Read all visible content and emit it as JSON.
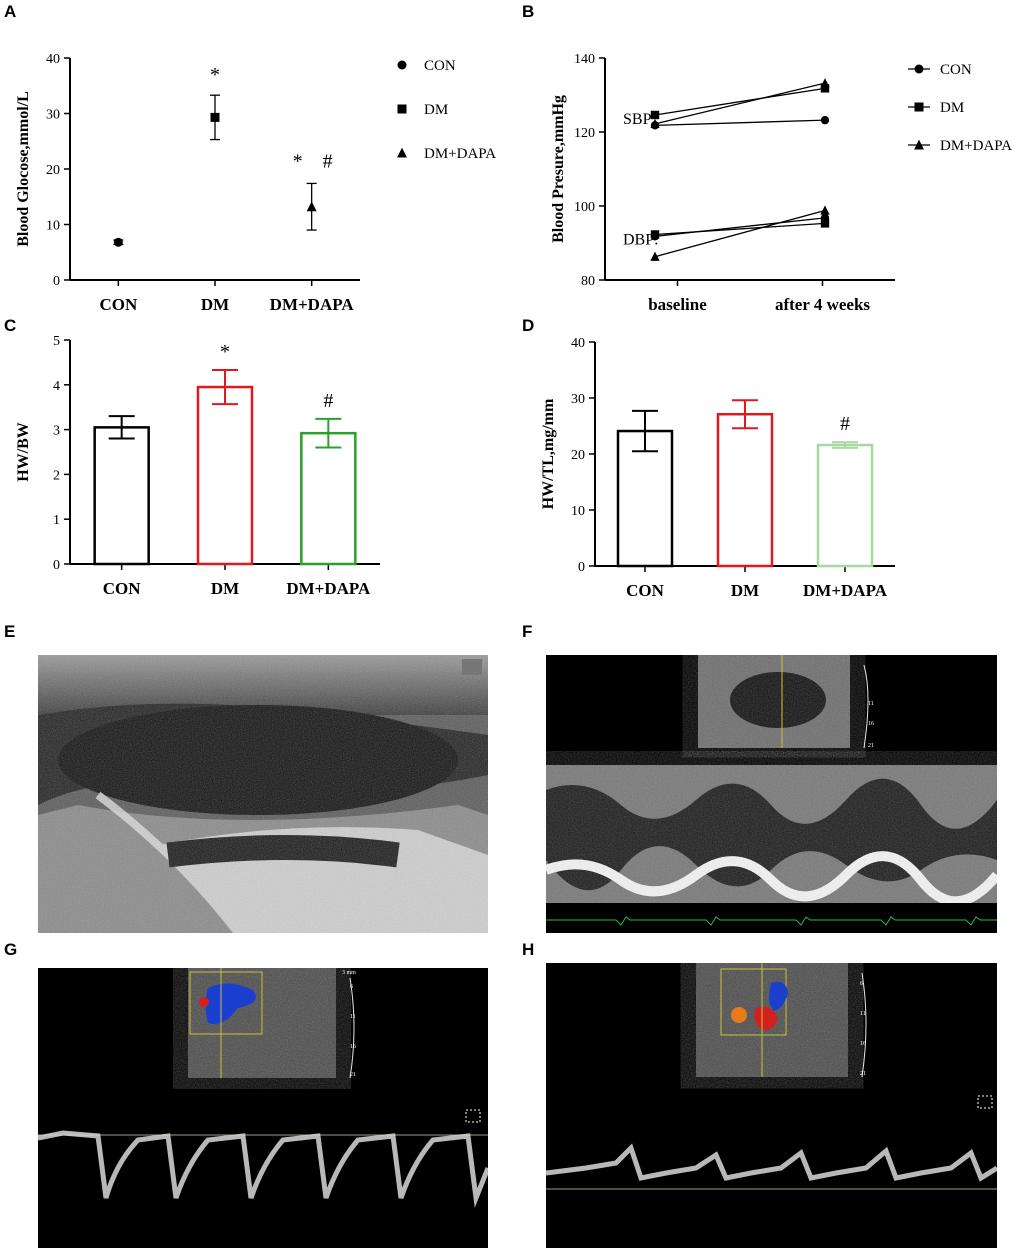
{
  "panel_letters": [
    "A",
    "B",
    "C",
    "D",
    "E",
    "F",
    "G",
    "H"
  ],
  "chart_data": [
    {
      "panel": "A",
      "type": "scatter",
      "ylabel": "Blood Glocose,mmol/L",
      "categories": [
        "CON",
        "DM",
        "DM+DAPA"
      ],
      "ylim": [
        0,
        40
      ],
      "yticks": [
        0,
        10,
        20,
        30,
        40
      ],
      "series": [
        {
          "name": "CON",
          "marker": "circle",
          "category": "CON",
          "value": 6.8,
          "err": 0.4
        },
        {
          "name": "DM",
          "marker": "square",
          "category": "DM",
          "value": 29.3,
          "err": 4.0
        },
        {
          "name": "DM+DAPA",
          "marker": "triangle",
          "category": "DM+DAPA",
          "value": 13.2,
          "err": 4.2
        }
      ],
      "annotations": [
        {
          "category": "DM",
          "text": "*"
        },
        {
          "category": "DM+DAPA",
          "text": "*"
        },
        {
          "category": "DM+DAPA",
          "text": "#"
        }
      ],
      "legend": "right"
    },
    {
      "panel": "B",
      "type": "line",
      "ylabel": "Blood Presure,mmHg",
      "categories": [
        "baseline",
        "after 4 weeks"
      ],
      "ylim": [
        80,
        140
      ],
      "yticks": [
        80,
        100,
        120,
        140
      ],
      "row_labels": [
        "SBP:",
        "DBP:"
      ],
      "series": [
        {
          "name": "CON",
          "marker": "circle",
          "sbp": [
            121.8,
            123.2
          ],
          "dbp": [
            91.8,
            96.8
          ]
        },
        {
          "name": "DM",
          "marker": "square",
          "sbp": [
            124.6,
            131.8
          ],
          "dbp": [
            92.3,
            95.3
          ]
        },
        {
          "name": "DM+DAPA",
          "marker": "triangle",
          "sbp": [
            122.2,
            133.2
          ],
          "dbp": [
            86.3,
            98.8
          ]
        }
      ],
      "legend": "right"
    },
    {
      "panel": "C",
      "type": "bar",
      "ylabel": "HW/BW",
      "categories": [
        "CON",
        "DM",
        "DM+DAPA"
      ],
      "ylim": [
        0,
        5
      ],
      "yticks": [
        0,
        1,
        2,
        3,
        4,
        5
      ],
      "values": [
        3.05,
        3.95,
        2.92
      ],
      "errors": [
        0.25,
        0.38,
        0.32
      ],
      "colors": [
        "#000000",
        "#e0191e",
        "#2ca02c"
      ],
      "annotations": [
        "",
        "*",
        "#"
      ]
    },
    {
      "panel": "D",
      "type": "bar",
      "ylabel": "HW/TL,mg/mm",
      "categories": [
        "CON",
        "DM",
        "DM+DAPA"
      ],
      "ylim": [
        0,
        40
      ],
      "yticks": [
        0,
        10,
        20,
        30,
        40
      ],
      "values": [
        24.1,
        27.1,
        21.6
      ],
      "errors": [
        3.6,
        2.5,
        0.5
      ],
      "colors": [
        "#000000",
        "#e0191e",
        "#a6d8a0"
      ],
      "annotations": [
        "",
        "",
        "#"
      ]
    }
  ],
  "ultrasound": {
    "g_scale": [
      "3 mm",
      "6",
      "11",
      "16",
      "21"
    ],
    "h_scale": [
      "6",
      "11",
      "16",
      "21"
    ],
    "f_scale": [
      "6",
      "11",
      "16",
      "21"
    ]
  }
}
